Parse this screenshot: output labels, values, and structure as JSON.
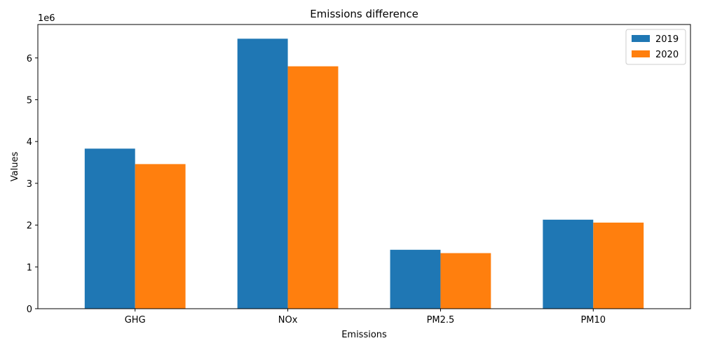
{
  "chart_data": {
    "type": "bar",
    "title": "Emissions difference",
    "xlabel": "Emissions",
    "ylabel": "Values",
    "offset_label": "1e6",
    "categories": [
      "GHG",
      "NOx",
      "PM2.5",
      "PM10"
    ],
    "series": [
      {
        "name": "2019",
        "color": "#1f77b4",
        "values": [
          3830000,
          6460000,
          1410000,
          2130000
        ]
      },
      {
        "name": "2020",
        "color": "#ff7f0e",
        "values": [
          3460000,
          5800000,
          1330000,
          2060000
        ]
      }
    ],
    "ylim": [
      0,
      6800000
    ],
    "yticks": [
      0,
      1000000,
      2000000,
      3000000,
      4000000,
      5000000,
      6000000
    ],
    "ytick_labels": [
      "0",
      "1",
      "2",
      "3",
      "4",
      "5",
      "6"
    ],
    "grid": false,
    "legend_position": "top-right"
  }
}
